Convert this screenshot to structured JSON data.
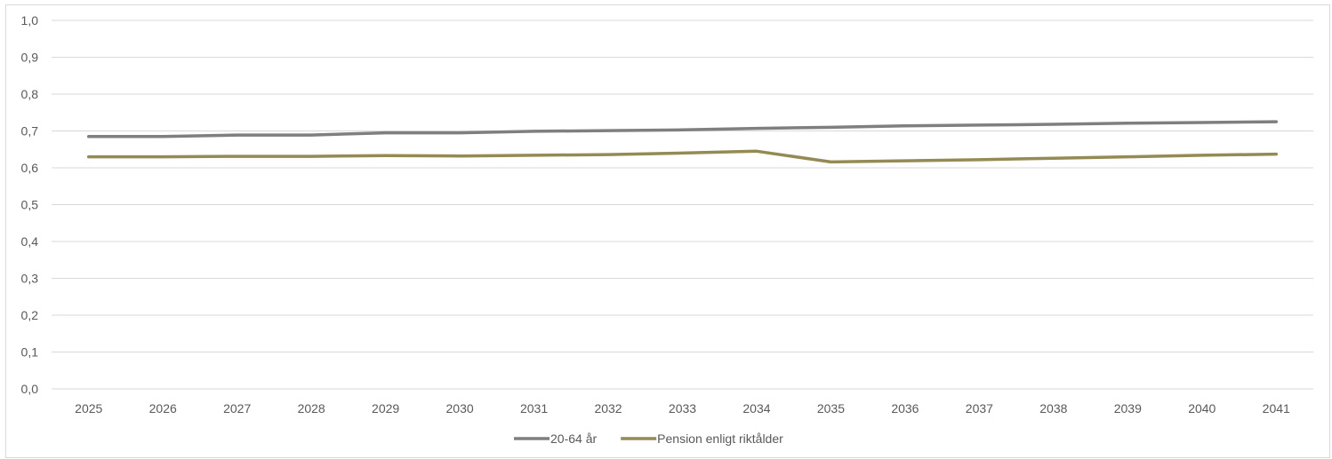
{
  "chart_data": {
    "type": "line",
    "title": "",
    "xlabel": "",
    "ylabel": "",
    "categories": [
      "2025",
      "2026",
      "2027",
      "2028",
      "2029",
      "2030",
      "2031",
      "2032",
      "2033",
      "2034",
      "2035",
      "2036",
      "2037",
      "2038",
      "2039",
      "2040",
      "2041"
    ],
    "ylim": [
      0,
      1.0
    ],
    "yticks": [
      "0,0",
      "0,1",
      "0,2",
      "0,3",
      "0,4",
      "0,5",
      "0,6",
      "0,7",
      "0,8",
      "0,9",
      "1,0"
    ],
    "grid": true,
    "legend_position": "bottom",
    "series": [
      {
        "name": "20-64 år",
        "color": "#7f7f7f",
        "values": [
          0.685,
          0.685,
          0.689,
          0.689,
          0.695,
          0.695,
          0.699,
          0.701,
          0.703,
          0.707,
          0.71,
          0.714,
          0.716,
          0.718,
          0.721,
          0.723,
          0.725
        ]
      },
      {
        "name": "Pension enligt riktålder",
        "color": "#948a54",
        "values": [
          0.63,
          0.63,
          0.631,
          0.631,
          0.633,
          0.632,
          0.634,
          0.636,
          0.64,
          0.645,
          0.616,
          0.619,
          0.622,
          0.626,
          0.63,
          0.634,
          0.637
        ]
      }
    ]
  }
}
